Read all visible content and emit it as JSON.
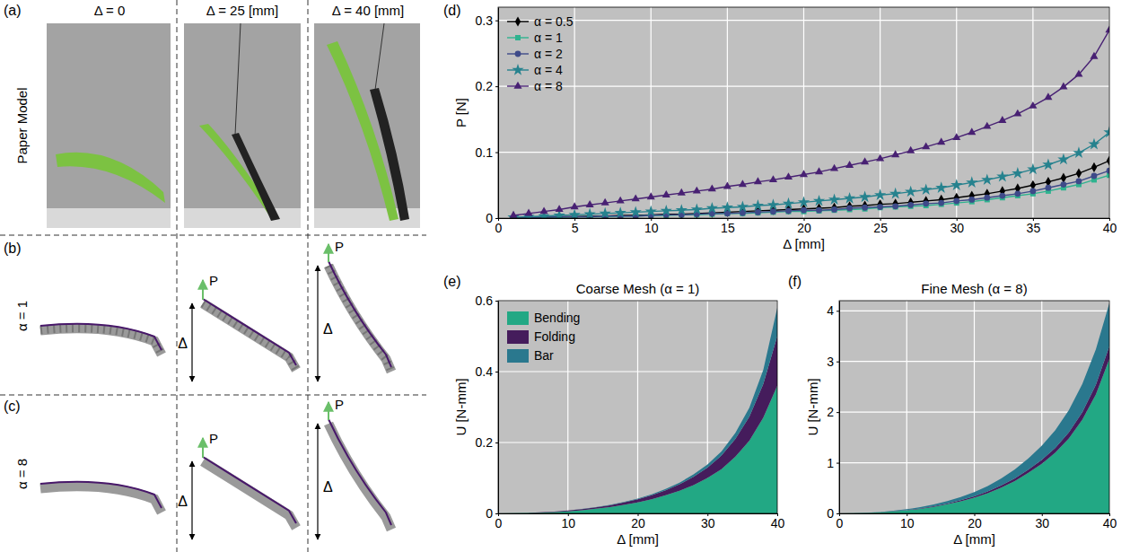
{
  "figure": {
    "panel_letters": [
      "(a)",
      "(b)",
      "(c)"
    ],
    "columns": [
      "Δ = 0",
      "Δ = 25 [mm]",
      "Δ = 40 [mm]"
    ],
    "rows": [
      "Paper Model",
      "α = 1",
      "α = 8"
    ],
    "force_label": "P",
    "displacement_label": "Δ"
  },
  "chart_data": [
    {
      "type": "line",
      "annotation": "(d)",
      "x_label": "Δ [mm]",
      "y_label": "P [N]",
      "x": [
        1,
        2,
        3,
        4,
        5,
        6,
        7,
        8,
        9,
        10,
        11,
        12,
        13,
        14,
        15,
        16,
        17,
        18,
        19,
        20,
        21,
        22,
        23,
        24,
        25,
        26,
        27,
        28,
        29,
        30,
        31,
        32,
        33,
        34,
        35,
        36,
        37,
        38,
        39,
        40
      ],
      "xlim": [
        0,
        40
      ],
      "xticks": [
        0,
        5,
        10,
        15,
        20,
        25,
        30,
        35,
        40
      ],
      "ylim": [
        0,
        0.32
      ],
      "yticks": [
        0,
        0.1,
        0.2,
        0.3
      ],
      "grid": true,
      "legend": "top-left",
      "series": [
        {
          "name": "α = 0.5",
          "color": "#000000",
          "marker": "diamond",
          "values": [
            0,
            0.001,
            0.001,
            0.002,
            0.002,
            0.003,
            0.003,
            0.004,
            0.004,
            0.005,
            0.006,
            0.006,
            0.007,
            0.008,
            0.009,
            0.01,
            0.011,
            0.012,
            0.013,
            0.014,
            0.015,
            0.016,
            0.018,
            0.019,
            0.021,
            0.022,
            0.024,
            0.026,
            0.028,
            0.031,
            0.034,
            0.037,
            0.041,
            0.045,
            0.05,
            0.055,
            0.061,
            0.068,
            0.077,
            0.087
          ]
        },
        {
          "name": "α = 1",
          "color": "#2fb38f",
          "marker": "square",
          "values": [
            0,
            0.001,
            0.001,
            0.001,
            0.002,
            0.002,
            0.002,
            0.003,
            0.003,
            0.004,
            0.004,
            0.005,
            0.005,
            0.006,
            0.007,
            0.007,
            0.008,
            0.009,
            0.01,
            0.01,
            0.011,
            0.012,
            0.013,
            0.014,
            0.016,
            0.017,
            0.018,
            0.019,
            0.021,
            0.023,
            0.025,
            0.028,
            0.031,
            0.034,
            0.037,
            0.041,
            0.046,
            0.051,
            0.058,
            0.065
          ]
        },
        {
          "name": "α = 2",
          "color": "#3e4a89",
          "marker": "circle",
          "values": [
            0,
            0.001,
            0.001,
            0.002,
            0.002,
            0.002,
            0.003,
            0.003,
            0.003,
            0.004,
            0.005,
            0.005,
            0.006,
            0.007,
            0.007,
            0.008,
            0.009,
            0.01,
            0.011,
            0.012,
            0.012,
            0.013,
            0.015,
            0.016,
            0.017,
            0.018,
            0.02,
            0.022,
            0.023,
            0.026,
            0.028,
            0.031,
            0.034,
            0.037,
            0.041,
            0.046,
            0.051,
            0.056,
            0.064,
            0.072
          ]
        },
        {
          "name": "α = 4",
          "color": "#26828e",
          "marker": "star",
          "values": [
            0.001,
            0.002,
            0.003,
            0.004,
            0.005,
            0.006,
            0.007,
            0.008,
            0.009,
            0.01,
            0.011,
            0.012,
            0.013,
            0.015,
            0.016,
            0.017,
            0.019,
            0.02,
            0.022,
            0.024,
            0.026,
            0.028,
            0.03,
            0.032,
            0.035,
            0.037,
            0.04,
            0.043,
            0.046,
            0.05,
            0.054,
            0.058,
            0.063,
            0.068,
            0.074,
            0.081,
            0.089,
            0.099,
            0.112,
            0.13
          ]
        },
        {
          "name": "α = 8",
          "color": "#482173",
          "marker": "triangle",
          "values": [
            0.004,
            0.007,
            0.01,
            0.013,
            0.017,
            0.02,
            0.023,
            0.026,
            0.029,
            0.032,
            0.035,
            0.038,
            0.041,
            0.044,
            0.048,
            0.051,
            0.055,
            0.058,
            0.062,
            0.066,
            0.07,
            0.075,
            0.08,
            0.085,
            0.09,
            0.096,
            0.102,
            0.108,
            0.115,
            0.122,
            0.13,
            0.139,
            0.148,
            0.158,
            0.17,
            0.183,
            0.199,
            0.218,
            0.245,
            0.285
          ]
        }
      ]
    },
    {
      "type": "area",
      "stacked": true,
      "annotation": "(e)",
      "title": "Coarse Mesh (α = 1)",
      "x_label": "Δ [mm]",
      "y_label": "U [N-mm]",
      "x": [
        0,
        2,
        4,
        6,
        8,
        10,
        12,
        14,
        16,
        18,
        20,
        22,
        24,
        26,
        28,
        30,
        32,
        34,
        36,
        38,
        40
      ],
      "xlim": [
        0,
        40
      ],
      "xticks": [
        0,
        10,
        20,
        30,
        40
      ],
      "ylim": [
        0,
        0.6
      ],
      "yticks": [
        0,
        0.2,
        0.4,
        0.6
      ],
      "grid": true,
      "legend": "top-left",
      "series": [
        {
          "name": "Bending",
          "color": "#22a884",
          "values": [
            0,
            0.0005,
            0.001,
            0.002,
            0.004,
            0.006,
            0.009,
            0.013,
            0.018,
            0.024,
            0.031,
            0.04,
            0.051,
            0.064,
            0.08,
            0.1,
            0.125,
            0.16,
            0.205,
            0.27,
            0.36
          ]
        },
        {
          "name": "Folding",
          "color": "#451c5c",
          "values": [
            0,
            0.0002,
            0.0005,
            0.001,
            0.001,
            0.002,
            0.003,
            0.004,
            0.005,
            0.007,
            0.009,
            0.011,
            0.014,
            0.018,
            0.023,
            0.029,
            0.038,
            0.05,
            0.068,
            0.095,
            0.14
          ]
        },
        {
          "name": "Bar",
          "color": "#2a788e",
          "values": [
            0,
            0,
            0,
            0.0001,
            0.0002,
            0.0003,
            0.0005,
            0.0008,
            0.001,
            0.0015,
            0.002,
            0.003,
            0.004,
            0.005,
            0.007,
            0.009,
            0.012,
            0.017,
            0.025,
            0.04,
            0.08
          ]
        }
      ]
    },
    {
      "type": "area",
      "stacked": true,
      "annotation": "(f)",
      "title": "Fine Mesh (α = 8)",
      "x_label": "Δ [mm]",
      "y_label": "U [N-mm]",
      "x": [
        0,
        2,
        4,
        6,
        8,
        10,
        12,
        14,
        16,
        18,
        20,
        22,
        24,
        26,
        28,
        30,
        32,
        34,
        36,
        38,
        40
      ],
      "xlim": [
        0,
        40
      ],
      "xticks": [
        0,
        10,
        20,
        30,
        40
      ],
      "ylim": [
        0,
        4.2
      ],
      "yticks": [
        0,
        1,
        2,
        3,
        4
      ],
      "grid": true,
      "series": [
        {
          "name": "Bending",
          "color": "#22a884",
          "values": [
            0,
            0.003,
            0.01,
            0.02,
            0.04,
            0.06,
            0.09,
            0.13,
            0.18,
            0.24,
            0.31,
            0.4,
            0.51,
            0.64,
            0.8,
            0.98,
            1.2,
            1.48,
            1.85,
            2.35,
            3.05
          ]
        },
        {
          "name": "Folding",
          "color": "#451c5c",
          "values": [
            0,
            0.0003,
            0.001,
            0.002,
            0.004,
            0.006,
            0.009,
            0.012,
            0.016,
            0.021,
            0.027,
            0.034,
            0.042,
            0.052,
            0.064,
            0.078,
            0.095,
            0.118,
            0.148,
            0.19,
            0.25
          ]
        },
        {
          "name": "Bar",
          "color": "#2a788e",
          "values": [
            0,
            0.001,
            0.003,
            0.006,
            0.01,
            0.016,
            0.024,
            0.034,
            0.047,
            0.063,
            0.083,
            0.107,
            0.137,
            0.175,
            0.22,
            0.28,
            0.35,
            0.44,
            0.56,
            0.7,
            0.85
          ]
        }
      ]
    }
  ]
}
